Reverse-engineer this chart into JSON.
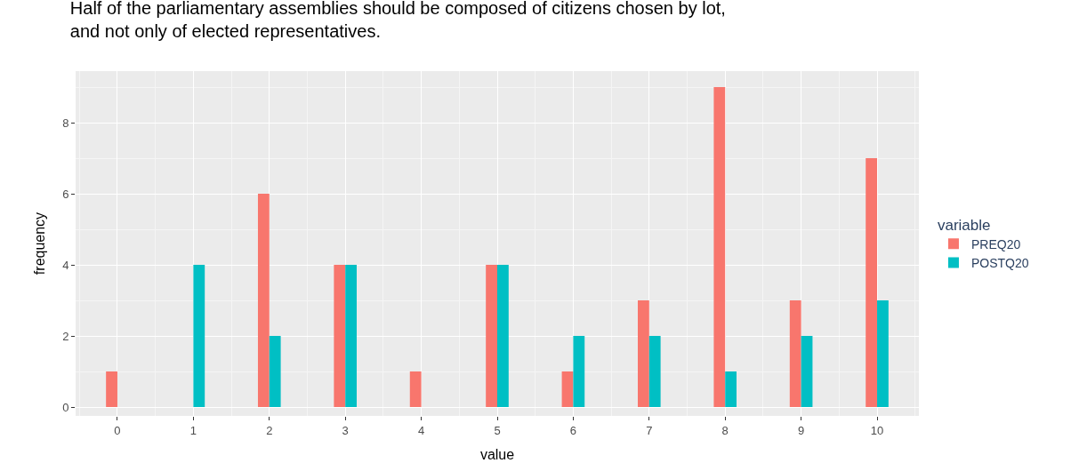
{
  "chart_data": {
    "type": "bar",
    "title": "Half of the parliamentary assemblies should be composed of citizens chosen by lot,\nand not only of elected representatives.",
    "xlabel": "value",
    "ylabel": "frequency",
    "legend_title": "variable",
    "x": [
      0,
      1,
      2,
      3,
      4,
      5,
      6,
      7,
      8,
      9,
      10
    ],
    "series": [
      {
        "name": "PREQ20",
        "color": "#f8766d",
        "values": [
          1,
          null,
          6,
          4,
          1,
          4,
          1,
          3,
          9,
          3,
          7
        ]
      },
      {
        "name": "POSTQ20",
        "color": "#00bfc4",
        "values": [
          null,
          4,
          2,
          4,
          null,
          4,
          2,
          2,
          1,
          2,
          3
        ]
      }
    ],
    "xlim": [
      -0.55,
      10.55
    ],
    "xticks": [
      0,
      1,
      2,
      3,
      4,
      5,
      6,
      7,
      8,
      9,
      10
    ],
    "ylim": [
      -0.25,
      9.45
    ],
    "yticks": [
      0,
      2,
      4,
      6,
      8
    ],
    "grid": true,
    "legend": "right"
  }
}
